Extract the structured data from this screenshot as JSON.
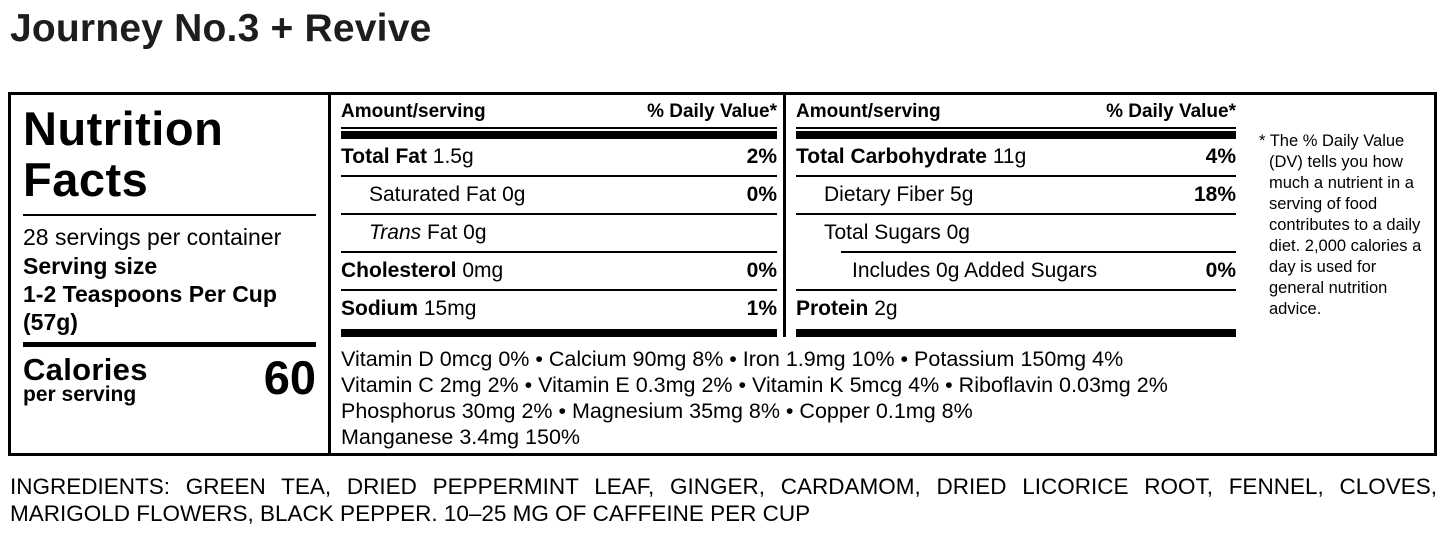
{
  "page": {
    "title": "Journey No.3 + Revive"
  },
  "label": {
    "heading_line1": "Nutrition",
    "heading_line2": "Facts",
    "servings_per_container": "28 servings per container",
    "serving_size_label": "Serving size",
    "serving_size_value": "1-2 Teaspoons Per Cup",
    "serving_size_weight": "(57g)",
    "calories_label": "Calories",
    "calories_sublabel": "per serving",
    "calories_value": "60",
    "columns": [
      {
        "header_amount": "Amount/serving",
        "header_dv": "% Daily Value*",
        "rows": [
          {
            "name": "Total Fat",
            "amount": "1.5g",
            "dv": "2%"
          },
          {
            "name": "Saturated Fat",
            "amount": "0g",
            "dv": "0%"
          },
          {
            "name_italic": "Trans",
            "name": "Fat",
            "amount": "0g",
            "dv": ""
          },
          {
            "name": "Cholesterol",
            "amount": "0mg",
            "dv": "0%"
          },
          {
            "name": "Sodium",
            "amount": "15mg",
            "dv": "1%"
          }
        ]
      },
      {
        "header_amount": "Amount/serving",
        "header_dv": "% Daily Value*",
        "rows": [
          {
            "name": "Total Carbohydrate",
            "amount": "11g",
            "dv": "4%"
          },
          {
            "name": "Dietary Fiber",
            "amount": "5g",
            "dv": "18%"
          },
          {
            "name": "Total Sugars",
            "amount": "0g",
            "dv": ""
          },
          {
            "name": "Includes 0g Added Sugars",
            "amount": "",
            "dv": "0%"
          },
          {
            "name": "Protein",
            "amount": "2g",
            "dv": ""
          }
        ]
      }
    ],
    "micronutrient_lines": [
      "Vitamin D 0mcg 0% • Calcium 90mg 8% • Iron 1.9mg 10% • Potassium 150mg 4%",
      "Vitamin C 2mg 2% • Vitamin E 0.3mg 2% • Vitamin K 5mcg 4% • Riboflavin 0.03mg 2%",
      "Phosphorus 30mg 2% • Magnesium 35mg 8% • Copper 0.1mg 8%",
      "Manganese 3.4mg 150%"
    ],
    "footnote": "* The % Daily Value (DV) tells you how much a nutrient in a serving of food contributes to a daily diet. 2,000 calories a day is used for general nutrition advice."
  },
  "ingredients": {
    "line1": "INGREDIENTS: GREEN TEA, DRIED PEPPERMINT LEAF, GINGER, CARDAMOM, DRIED LICORICE ROOT, FENNEL, CLOVES,",
    "line2": "MARIGOLD FLOWERS, BLACK PEPPER. 10–25 MG OF CAFFEINE PER CUP"
  }
}
